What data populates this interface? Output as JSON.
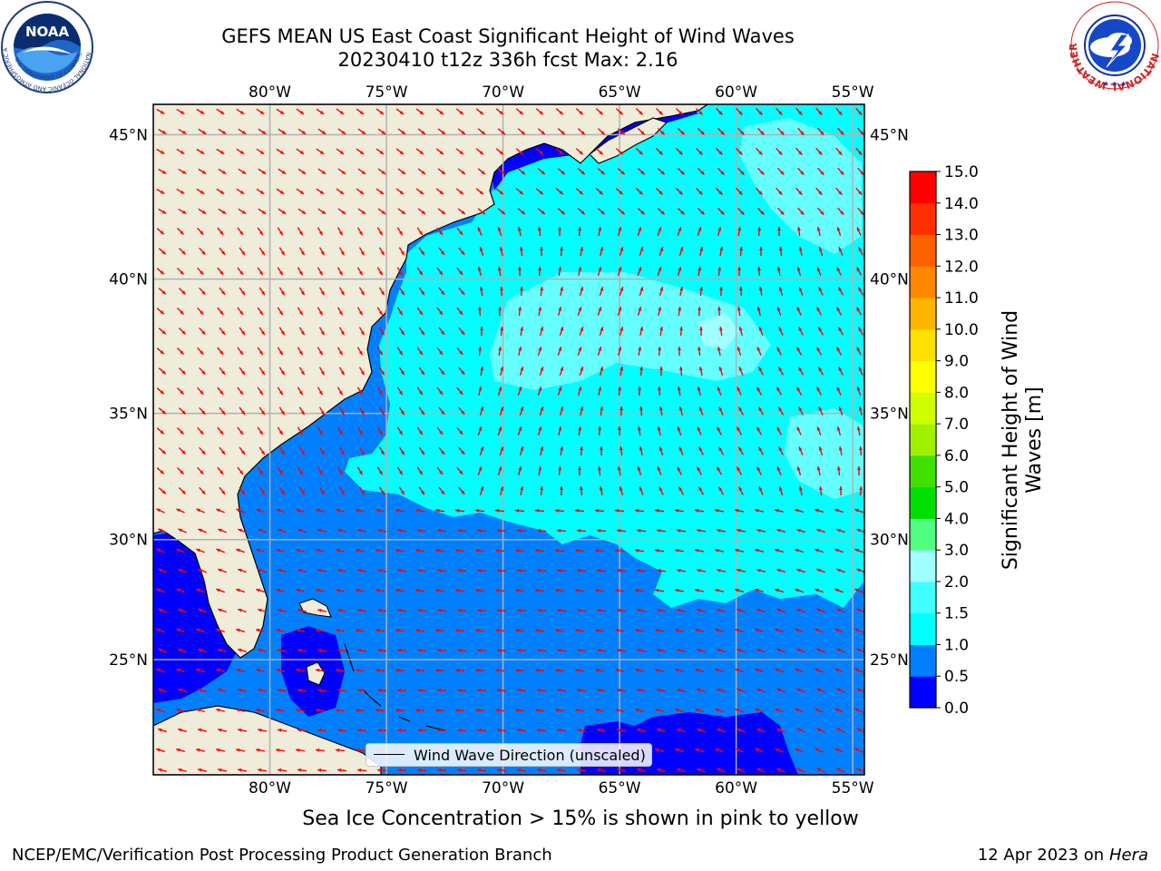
{
  "header": {
    "title_line1": "GEFS MEAN US East Coast Significant Height of Wind Waves",
    "title_line2": "20230410 t12z 336h fcst   Max: 2.16"
  },
  "logos": {
    "left": "NOAA",
    "left_ring_text": "NATIONAL OCEANIC AND ATMOSPHERIC ADMINISTRATION",
    "left_bottom_text": "U.S. DEPARTMENT OF COMMERCE",
    "right_ring_text": "NATIONAL WEATHER SERVICE"
  },
  "map": {
    "lon_labels": [
      "80°W",
      "75°W",
      "70°W",
      "65°W",
      "60°W",
      "55°W"
    ],
    "lat_labels": [
      "45°N",
      "40°N",
      "35°N",
      "30°N",
      "25°N"
    ],
    "lon_values": [
      -80,
      -75,
      -70,
      -65,
      -60,
      -55
    ],
    "lat_values": [
      45,
      40,
      35,
      30,
      25
    ],
    "extent": {
      "lon_min": -85,
      "lon_max": -54.5,
      "lat_min": 20,
      "lat_max": 46
    },
    "land_color": "#efedda",
    "grid_color": "#b0b0b0",
    "arrow_color": "#ff0000",
    "legend_label": "Wind Wave Direction (unscaled)"
  },
  "colorbar": {
    "label_line1": "Significant Height of Wind",
    "label_line2": "Waves [m]",
    "ticks": [
      "0.0",
      "0.5",
      "1.0",
      "1.5",
      "2.0",
      "3.0",
      "4.0",
      "5.0",
      "6.0",
      "7.0",
      "8.0",
      "9.0",
      "10.0",
      "11.0",
      "12.0",
      "13.0",
      "14.0",
      "15.0"
    ],
    "colors": [
      "#0000ff",
      "#0080ff",
      "#00ffff",
      "#40ffff",
      "#a0ffff",
      "#50ff80",
      "#00e000",
      "#40e000",
      "#a0f000",
      "#d0ff00",
      "#ffff00",
      "#ffe000",
      "#ffb400",
      "#ff8800",
      "#ff6000",
      "#ff3000",
      "#ff0000"
    ]
  },
  "subcaption": "Sea Ice Concentration > 15% is shown in pink to yellow",
  "footer": {
    "left": "NCEP/EMC/Verification Post Processing Product Generation Branch",
    "right_date": "12 Apr 2023 on ",
    "right_host": "Hera"
  }
}
